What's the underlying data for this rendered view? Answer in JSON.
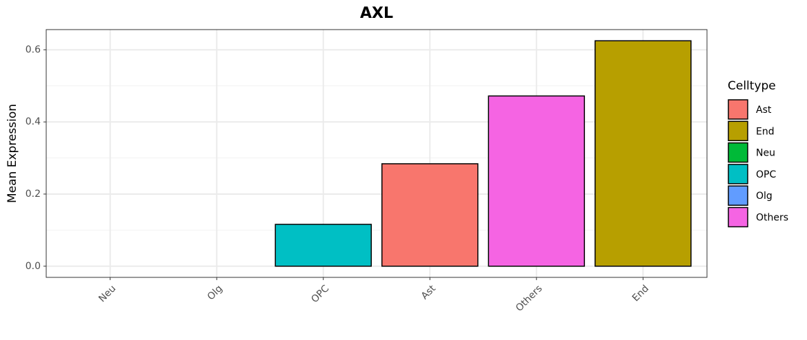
{
  "chart_data": {
    "type": "bar",
    "title": "AXL",
    "y_label": "Mean Expression",
    "categories": [
      "Neu",
      "Olg",
      "OPC",
      "Ast",
      "Others",
      "End"
    ],
    "values": [
      0,
      0,
      0.116,
      0.284,
      0.472,
      0.625
    ],
    "colors": [
      "#00BA38",
      "#619CFF",
      "#00BFC4",
      "#F8766D",
      "#F564E3",
      "#B79F00"
    ],
    "ylim": [
      -0.031,
      0.656
    ],
    "yticks": [
      0.0,
      0.2,
      0.4,
      0.6
    ],
    "minor_yticks": [
      0.1,
      0.3,
      0.5
    ],
    "grid": true,
    "legend": {
      "title": "Celltype",
      "position": "right",
      "items": [
        {
          "name": "Ast",
          "color": "#F8766D"
        },
        {
          "name": "End",
          "color": "#B79F00"
        },
        {
          "name": "Neu",
          "color": "#00BA38"
        },
        {
          "name": "OPC",
          "color": "#00BFC4"
        },
        {
          "name": "Olg",
          "color": "#619CFF"
        },
        {
          "name": "Others",
          "color": "#F564E3"
        }
      ]
    }
  }
}
